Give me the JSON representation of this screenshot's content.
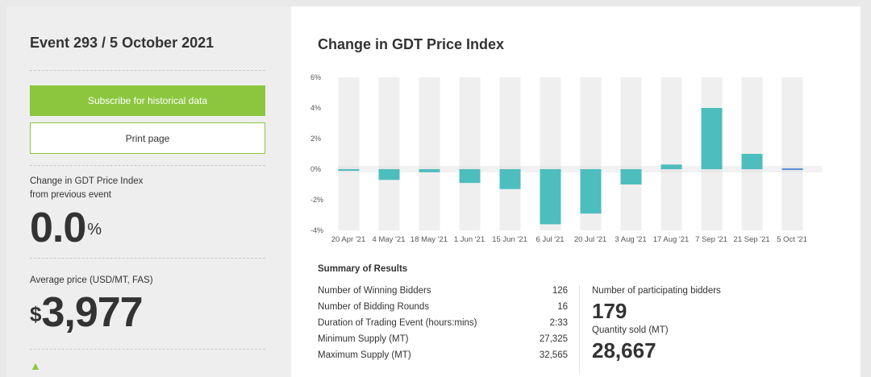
{
  "event": {
    "title": "Event 293 / 5 October 2021"
  },
  "buttons": {
    "subscribe_label": "Subscribe for historical data",
    "print_label": "Print page"
  },
  "gdt_change": {
    "label_line1": "Change in GDT Price Index",
    "label_line2": "from previous event",
    "value": "0.0",
    "unit": "%"
  },
  "average_price": {
    "label": "Average price (USD/MT, FAS)",
    "currency": "$",
    "value": "3,977"
  },
  "chart_title": "Change in GDT Price Index",
  "chart_data": {
    "type": "bar",
    "title": "Change in GDT Price Index",
    "categories": [
      "20 Apr '21",
      "4 May '21",
      "18 May '21",
      "1 Jun '21",
      "15 Jun '21",
      "6 Jul '21",
      "20 Jul '21",
      "3 Aug '21",
      "17 Aug '21",
      "7 Sep '21",
      "21 Sep '21",
      "5 Oct '21"
    ],
    "values": [
      -0.1,
      -0.7,
      -0.2,
      -0.9,
      -1.3,
      -3.6,
      -2.9,
      -1.0,
      0.3,
      4.0,
      1.0,
      0.0
    ],
    "ylim": [
      -4,
      6
    ],
    "yticks": [
      "6%",
      "4%",
      "2%",
      "0%",
      "-2%",
      "-4%"
    ],
    "ytick_values": [
      6,
      4,
      2,
      0,
      -2,
      -4
    ],
    "bar_color": "#4dbdbd",
    "zero_bar_color": "#5b8fd6",
    "band_color": "#efefef",
    "grid": true
  },
  "summary": {
    "title": "Summary of Results",
    "rows": [
      {
        "label": "Number of Winning Bidders",
        "value": "126"
      },
      {
        "label": "Number of Bidding Rounds",
        "value": "16"
      },
      {
        "label": "Duration of Trading Event (hours:mins)",
        "value": "2:33"
      },
      {
        "label": "Minimum Supply (MT)",
        "value": "27,325"
      },
      {
        "label": "Maximum Supply (MT)",
        "value": "32,565"
      }
    ],
    "participating_label": "Number of participating bidders",
    "participating_value": "179",
    "quantity_label": "Quantity sold (MT)",
    "quantity_value": "28,667"
  },
  "colors": {
    "accent_green": "#8cc63f",
    "panel_bg": "#eeeeee",
    "text": "#333333"
  }
}
